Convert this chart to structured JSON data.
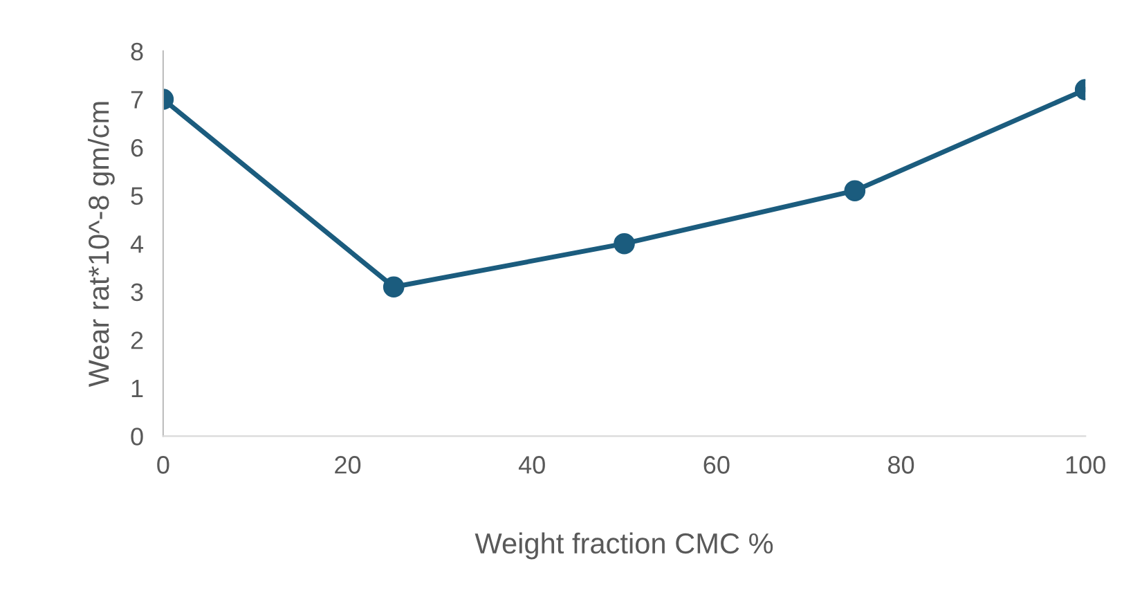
{
  "chart_data": {
    "type": "line",
    "xlabel": "Weight fraction CMC %",
    "ylabel": "Wear rat*10^-8 gm/cm",
    "x": [
      0,
      25,
      50,
      75,
      100
    ],
    "series": [
      {
        "color": "#1b5c7e",
        "values": [
          7.0,
          3.1,
          4.0,
          5.1,
          7.2
        ]
      }
    ],
    "xlim": [
      0,
      100
    ],
    "xticks": [
      0,
      20,
      40,
      60,
      80,
      100
    ],
    "ylim": [
      0,
      8
    ],
    "yticks": [
      0,
      1,
      2,
      3,
      4,
      5,
      6,
      7,
      8
    ],
    "marker": "circle",
    "line_style": "solid",
    "grid": false,
    "legend": false
  }
}
